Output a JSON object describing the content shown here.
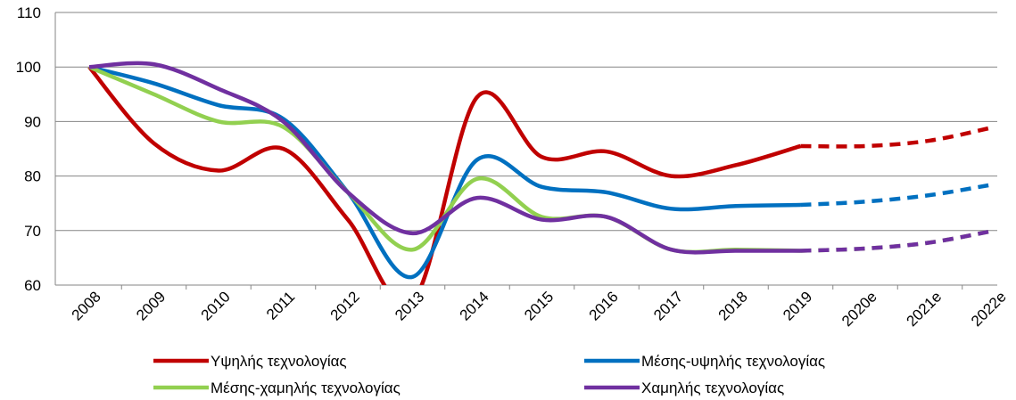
{
  "chart_data": {
    "type": "line",
    "categories": [
      "2008",
      "2009",
      "2010",
      "2011",
      "2012",
      "2013",
      "2014",
      "2015",
      "2016",
      "2017",
      "2018",
      "2019",
      "2020e",
      "2021e",
      "2022e"
    ],
    "series": [
      {
        "name": "Υψηλής τεχνολογίας",
        "color": "#c00000",
        "values": [
          100,
          86,
          81,
          85,
          72,
          57,
          94.5,
          83.5,
          84.5,
          80,
          82,
          85.5,
          85.5,
          86.5,
          89
        ]
      },
      {
        "name": "Μέσης-υψηλής τεχνολογίας",
        "color": "#0070c0",
        "values": [
          100,
          97,
          93,
          90.5,
          77,
          61.5,
          83,
          78,
          77,
          74,
          74.5,
          74.7,
          75.3,
          76.5,
          78.5
        ]
      },
      {
        "name": "Μέσης-χαμηλής τεχνολογίας",
        "color": "#92d050",
        "values": [
          100,
          95,
          90,
          89,
          77,
          66.5,
          79.5,
          72.5,
          72.5,
          66.5,
          66.5,
          66.3,
          66.7,
          67.8,
          70
        ]
      },
      {
        "name": "Χαμηλής τεχνολογίας",
        "color": "#7030a0",
        "values": [
          100,
          100.5,
          96,
          90,
          77,
          69.5,
          76,
          72,
          72.5,
          66.5,
          66.3,
          66.3,
          66.7,
          67.8,
          70
        ]
      }
    ],
    "dash_from": "2019",
    "ylim": [
      60,
      110
    ],
    "yticks": [
      60,
      70,
      80,
      90,
      100,
      110
    ],
    "grid": true,
    "smooth": true
  }
}
